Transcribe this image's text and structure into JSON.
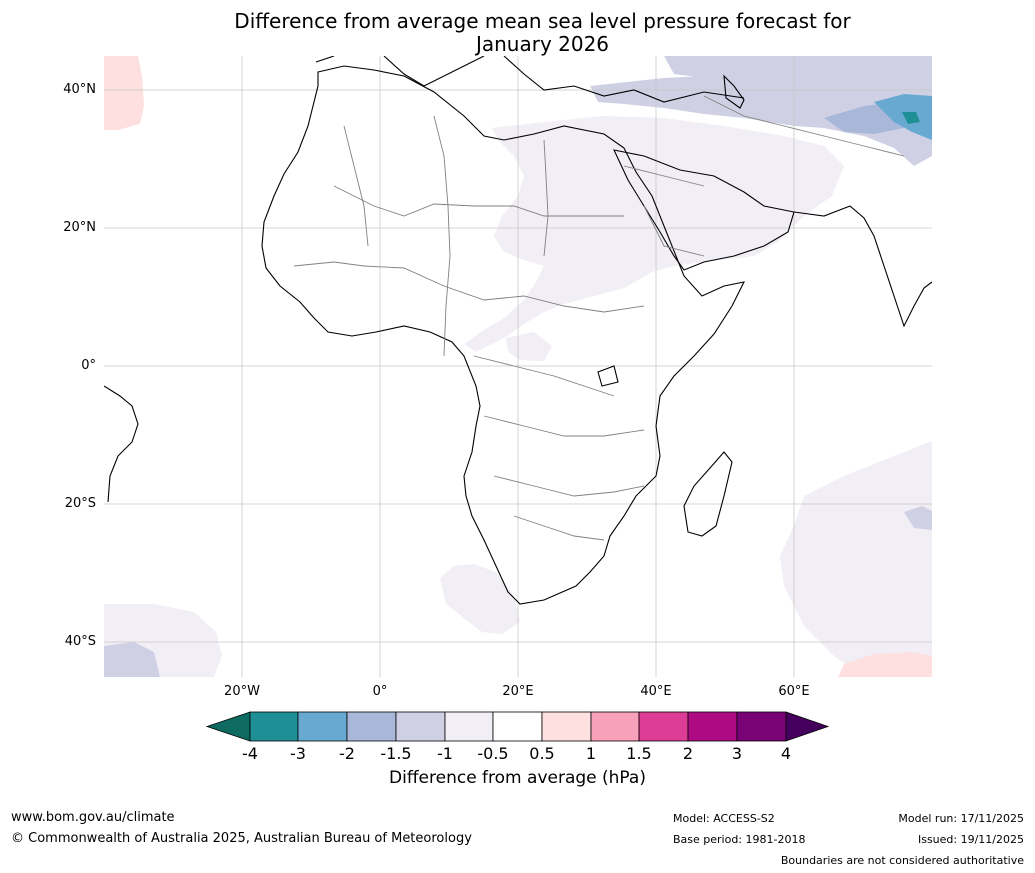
{
  "title_line1": "Difference from average mean sea level pressure forecast for",
  "title_line2": "January 2026",
  "lat_labels": [
    "40°N",
    "20°N",
    "0°",
    "20°S",
    "40°S"
  ],
  "lon_labels": [
    "20°W",
    "0°",
    "20°E",
    "40°E",
    "60°E"
  ],
  "colorbar": {
    "ticks": [
      "-4",
      "-3",
      "-2",
      "-1.5",
      "-1",
      "-0.5",
      "0.5",
      "1",
      "1.5",
      "2",
      "3",
      "4"
    ],
    "colors": [
      "#0e6b62",
      "#1f8f96",
      "#68a9d1",
      "#a9b7d8",
      "#d0d0e5",
      "#f2eef5",
      "#ffffff",
      "#fde0df",
      "#f7a1bb",
      "#de3d97",
      "#ad0a83",
      "#7a0277",
      "#45005e"
    ],
    "label": "Difference from average (hPa)"
  },
  "footer": {
    "website": "www.bom.gov.au/climate",
    "copyright": "© Commonwealth of Australia 2025, Australian Bureau of Meteorology",
    "model": "Model: ACCESS-S2",
    "base_period": "Base period: 1981-2018",
    "model_run": "Model run: 17/11/2025",
    "issued": "Issued: 19/11/2025",
    "disclaimer": "Boundaries are not considered authoritative"
  }
}
